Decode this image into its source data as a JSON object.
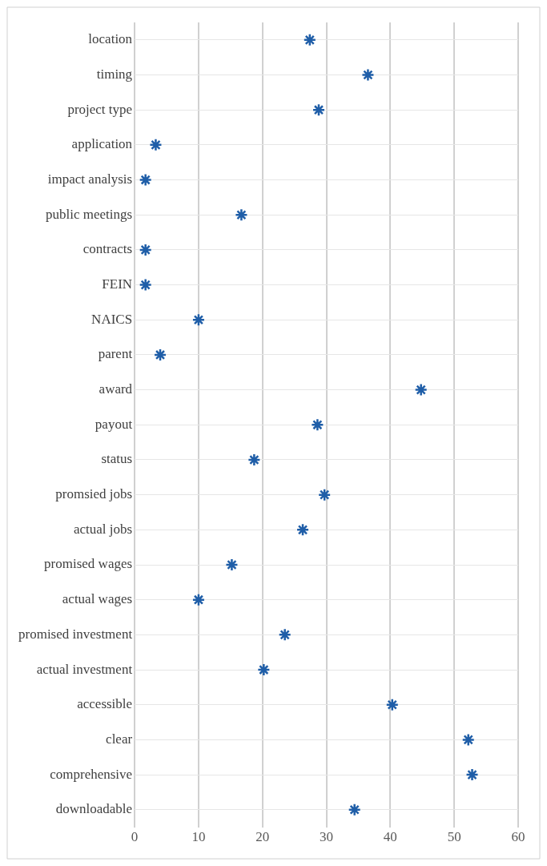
{
  "chart_data": {
    "type": "scatter",
    "orientation": "horizontal",
    "categories": [
      "location",
      "timing",
      "project type",
      "application",
      "impact analysis",
      "public meetings",
      "contracts",
      "FEIN",
      "NAICS",
      "parent",
      "award",
      "payout",
      "status",
      "promsied jobs",
      "actual jobs",
      "promised wages",
      "actual wages",
      "promised investment",
      "actual investment",
      "accessible",
      "clear",
      "comprehensive",
      "downloadable"
    ],
    "values": [
      27.4,
      36.5,
      28.8,
      3.3,
      1.7,
      16.7,
      1.7,
      1.7,
      10.0,
      4.0,
      44.8,
      28.6,
      18.7,
      29.7,
      26.3,
      15.2,
      10.0,
      23.5,
      20.2,
      40.3,
      52.2,
      52.8,
      34.4
    ],
    "color": "#1f5ea8",
    "xlim": [
      0,
      60
    ],
    "xticks": [
      0,
      10,
      20,
      30,
      40,
      50,
      60
    ],
    "grid": true,
    "marker": "cross",
    "legend": false
  }
}
